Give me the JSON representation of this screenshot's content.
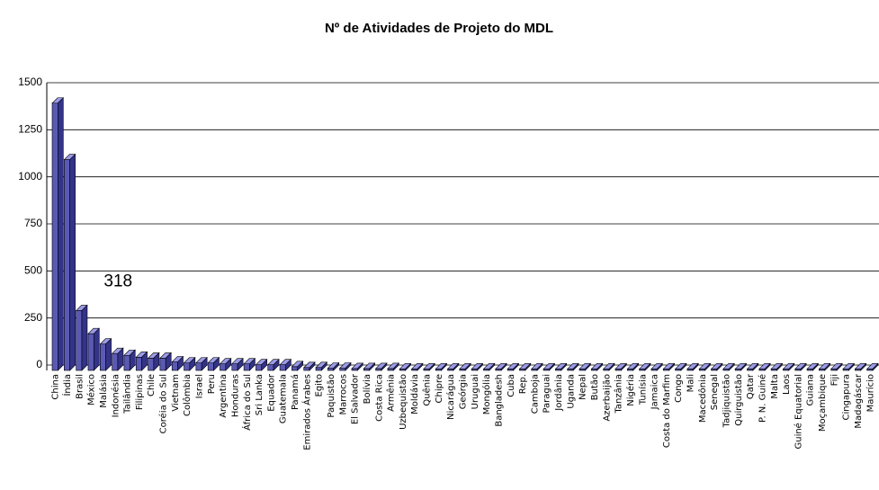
{
  "chart_data": {
    "type": "bar3d",
    "title": "Nº de Atividades de Projeto do MDL",
    "categories": [
      "China",
      "Índia",
      "Brasil",
      "México",
      "Malásia",
      "Indonésia",
      "Tailândia",
      "Filipinas",
      "Chile",
      "Coréia do Sul",
      "Vietnam",
      "Colômbia",
      "Israel",
      "Peru",
      "Argentina",
      "Honduras",
      "África do Sul",
      "Sri Lanka",
      "Equador",
      "Guatemala",
      "Panamá",
      "Emirados Árabes",
      "Egito",
      "Paquistão",
      "Marrocos",
      "El Salvador",
      "Bolívia",
      "Costa Rica",
      "Armênia",
      "Uzbequistão",
      "Moldávia",
      "Quênia",
      "Chipre",
      "Nicarágua",
      "Geórgia",
      "Uruguai",
      "Mongólia",
      "Bangladesh",
      "Cuba",
      "Rep.",
      "Camboja",
      "Paraguai",
      "Jordânia",
      "Uganda",
      "Nepal",
      "Butão",
      "Azerbaijão",
      "Tanzânia",
      "Nigéria",
      "Tunísia",
      "Jamaica",
      "Costa do Marfim",
      "Congo",
      "Mali",
      "Macedônia",
      "Senegal",
      "Tadjiquistão",
      "Quirguistão",
      "Qatar",
      "P. N. Guiné",
      "Malta",
      "Laos",
      "Guiné Equatorial",
      "Guiana",
      "Moçambique",
      "Fiji",
      "Cingapura",
      "Madagáscar",
      "Maurício"
    ],
    "values": [
      1420,
      1120,
      318,
      195,
      140,
      90,
      80,
      70,
      65,
      65,
      45,
      40,
      40,
      40,
      35,
      35,
      35,
      30,
      30,
      30,
      20,
      15,
      15,
      12,
      12,
      10,
      10,
      10,
      10,
      8,
      8,
      8,
      8,
      8,
      8,
      8,
      8,
      8,
      8,
      8,
      8,
      8,
      8,
      8,
      8,
      8,
      8,
      8,
      8,
      8,
      8,
      8,
      8,
      8,
      8,
      8,
      8,
      8,
      8,
      8,
      8,
      8,
      8,
      8,
      8,
      8,
      8,
      8,
      8
    ],
    "value_labels": [
      null,
      null,
      "318",
      null,
      null,
      null,
      null,
      null,
      null,
      null,
      null,
      null,
      null,
      null,
      null,
      null,
      null,
      null,
      null,
      null,
      null,
      null,
      null,
      null,
      null,
      null,
      null,
      null,
      null,
      null,
      null,
      null,
      null,
      null,
      null,
      null,
      null,
      null,
      null,
      null,
      null,
      null,
      null,
      null,
      null,
      null,
      null,
      null,
      null,
      null,
      null,
      null,
      null,
      null,
      null,
      null,
      null,
      null,
      null,
      null,
      null,
      null,
      null,
      null,
      null,
      null,
      null,
      null,
      null
    ],
    "color": "#5a5ab4",
    "ylim": [
      0,
      1500
    ],
    "yticks": [
      0,
      250,
      500,
      750,
      1000,
      1250,
      1500
    ],
    "grid": true
  }
}
